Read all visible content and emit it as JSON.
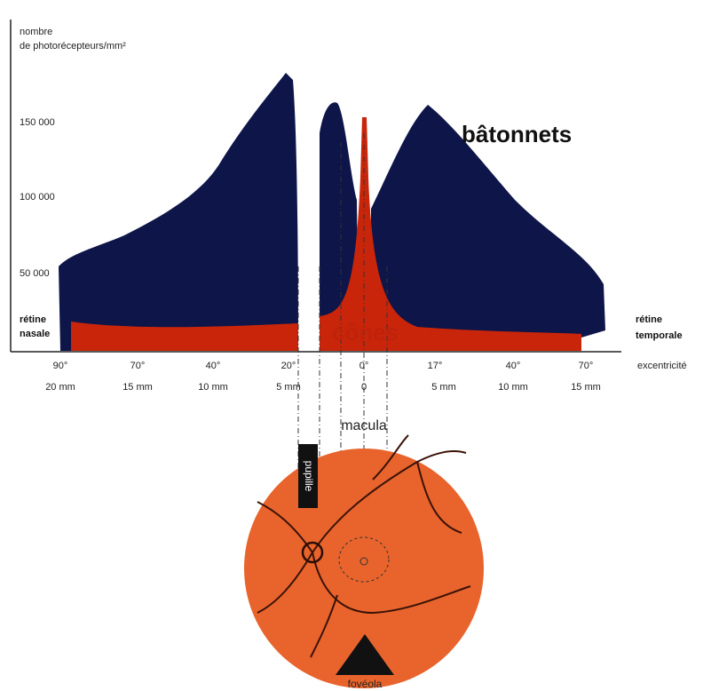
{
  "y_axis": {
    "title_lines": [
      "nombre",
      "de photorécepteurs/mm²"
    ],
    "ticks": [
      "150 000",
      "100 000",
      "50 000"
    ]
  },
  "x_axis": {
    "degrees": [
      "90°",
      "70°",
      "40°",
      "20°",
      "0°",
      "17°",
      "40°",
      "70°"
    ],
    "mm": [
      "20 mm",
      "15 mm",
      "10 mm",
      "5 mm",
      "0",
      "5 mm",
      "10 mm",
      "15 mm"
    ],
    "title": "excentricité"
  },
  "labels": {
    "rods": "bâtonnets",
    "cones": "cônes",
    "nasal": [
      "rétine",
      "nasale"
    ],
    "temporal": [
      "rétine",
      "temporale"
    ],
    "macula": "macula",
    "pupil": "pupille",
    "foveola": "fovéola"
  }
}
